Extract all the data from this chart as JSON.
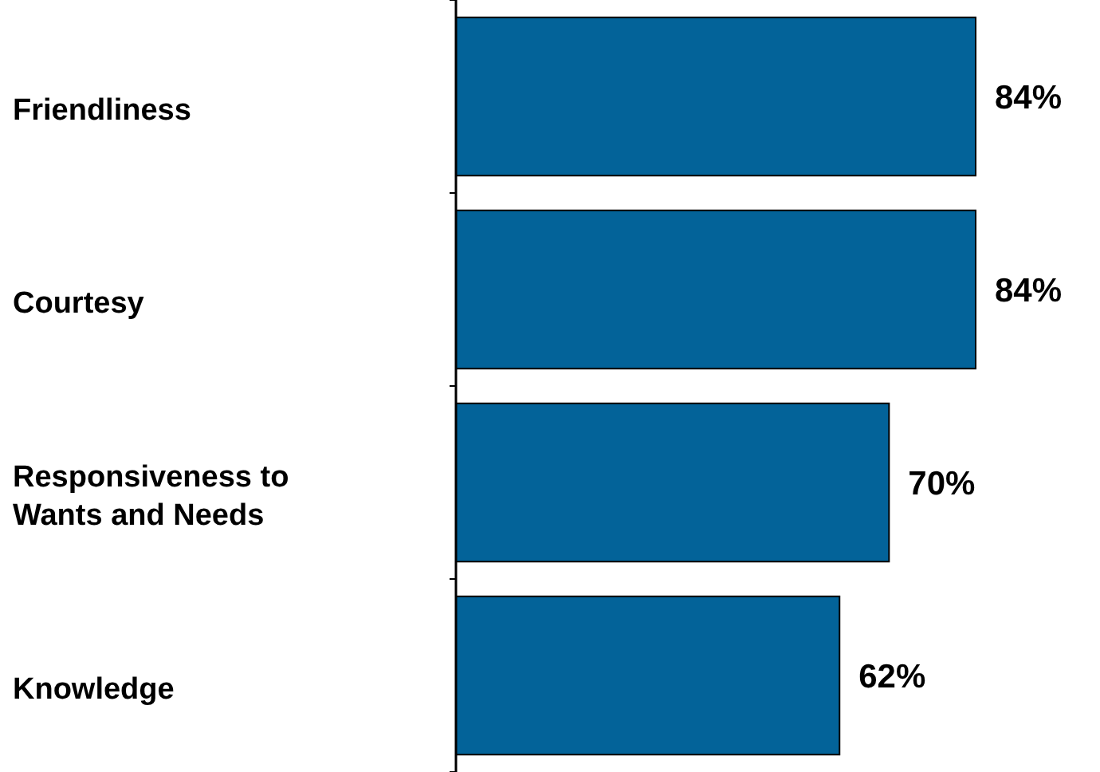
{
  "chart_data": {
    "type": "bar",
    "orientation": "horizontal",
    "categories": [
      "Friendliness",
      "Courtesy",
      "Responsiveness to Wants and Needs",
      "Knowledge"
    ],
    "values": [
      84,
      84,
      70,
      62
    ],
    "value_labels": [
      "84%",
      "84%",
      "70%",
      "62%"
    ],
    "color": "#036399",
    "tick_labels": "y"
  }
}
